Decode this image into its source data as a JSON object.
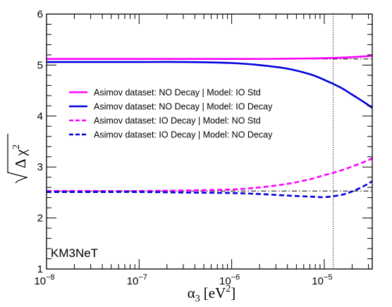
{
  "chart_data": {
    "type": "line",
    "xscale": "log",
    "xlim": [
      1e-08,
      3.3e-05
    ],
    "ylim": [
      1,
      6
    ],
    "xlabel_symbol": "α",
    "xlabel_sub": "3",
    "xlabel_unit": "[eV",
    "xlabel_unit_sup": "2",
    "xlabel_close": "]",
    "ylabel_symbol": "Δ χ",
    "ylabel_sup": "2",
    "x_tick_labels": [
      "10",
      "10",
      "10",
      "10"
    ],
    "x_tick_exponents": [
      "−8",
      "−7",
      "−6",
      "−5"
    ],
    "x_ticks": [
      1e-08,
      1e-07,
      1e-06,
      1e-05
    ],
    "y_ticks": [
      1,
      2,
      3,
      4,
      5,
      6
    ],
    "y_tick_labels": [
      "1",
      "2",
      "3",
      "4",
      "5",
      "6"
    ],
    "annotation": "KM3NeT",
    "reference_lines": [
      {
        "type": "hline",
        "y": 5.12,
        "style": "dash-dot",
        "color": "#000000"
      },
      {
        "type": "hline",
        "y": 2.53,
        "style": "dash-dot",
        "color": "#000000"
      },
      {
        "type": "vline",
        "x": 1.25e-05,
        "style": "dotted",
        "color": "#000000"
      }
    ],
    "x": [
      1e-08,
      3e-08,
      1e-07,
      3e-07,
      1e-06,
      2e-06,
      4e-06,
      7e-06,
      1e-05,
      1.5e-05,
      2e-05,
      2.7e-05,
      3.3e-05
    ],
    "series": [
      {
        "name": "Asimov dataset: NO Decay | Model: IO Std",
        "color": "#ff00ff",
        "dash": "solid",
        "values": [
          5.12,
          5.12,
          5.12,
          5.12,
          5.12,
          5.12,
          5.125,
          5.13,
          5.135,
          5.145,
          5.155,
          5.17,
          5.18
        ]
      },
      {
        "name": "Asimov dataset: NO Decay | Model: IO Decay",
        "color": "#0000dd",
        "dash": "solid",
        "values": [
          5.06,
          5.06,
          5.06,
          5.06,
          5.04,
          5.0,
          4.93,
          4.82,
          4.71,
          4.56,
          4.42,
          4.27,
          4.16
        ]
      },
      {
        "name": "Asimov dataset: IO Decay | Model: NO Std",
        "color": "#ff00ff",
        "dash": "dashed",
        "values": [
          2.53,
          2.53,
          2.53,
          2.54,
          2.56,
          2.6,
          2.67,
          2.76,
          2.84,
          2.93,
          3.01,
          3.1,
          3.17
        ]
      },
      {
        "name": "Asimov dataset: IO Decay | Model: NO Decay",
        "color": "#0000dd",
        "dash": "dashed",
        "values": [
          2.51,
          2.51,
          2.51,
          2.5,
          2.49,
          2.47,
          2.44,
          2.42,
          2.41,
          2.45,
          2.52,
          2.63,
          2.72
        ]
      }
    ]
  }
}
